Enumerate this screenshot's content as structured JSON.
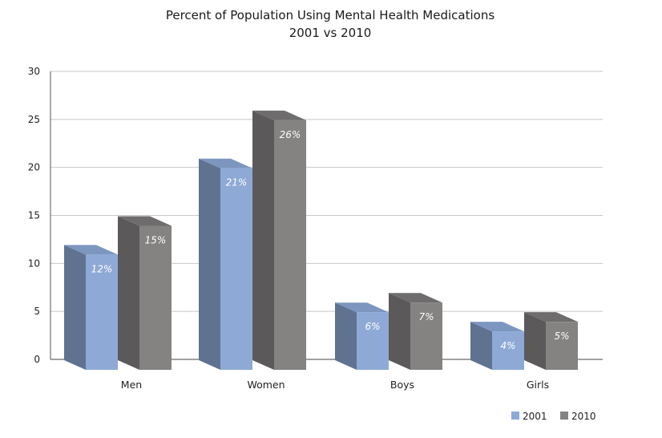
{
  "chart_data": {
    "type": "bar",
    "title": "Percent of Population Using Mental Health Medications",
    "subtitle": "2001 vs 2010",
    "categories": [
      "Men",
      "Women",
      "Boys",
      "Girls"
    ],
    "series": [
      {
        "name": "2001",
        "values": [
          12,
          21,
          6,
          4
        ],
        "labels": [
          "12%",
          "21%",
          "6%",
          "4%"
        ],
        "color": "#8ea9d6",
        "side_color": "#5f7391",
        "top_color": "#7d96c0"
      },
      {
        "name": "2010",
        "values": [
          15,
          26,
          7,
          5
        ],
        "labels": [
          "15%",
          "26%",
          "7%",
          "5%"
        ],
        "color": "#858282",
        "side_color": "#5b5959",
        "top_color": "#6e6c6c"
      }
    ],
    "y_ticks": [
      "0",
      "5",
      "10",
      "15",
      "20",
      "25",
      "30"
    ],
    "ylim": [
      0,
      30
    ],
    "grid": true,
    "legend_position": "bottom-right",
    "xlabel": "",
    "ylabel": ""
  }
}
